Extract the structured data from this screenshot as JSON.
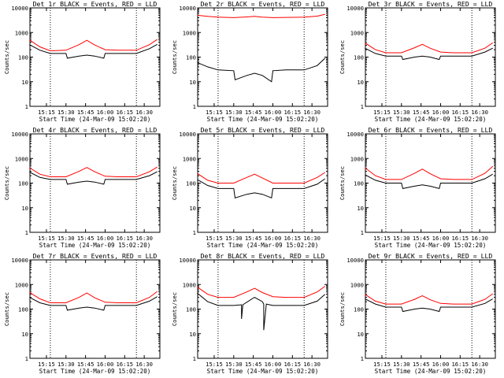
{
  "chart_data": [
    {
      "type": "line",
      "title": "Det 1r BLACK = Events, RED = LLD",
      "xlabel": "Start Time (24-Mar-09 15:02:20)",
      "ylabel": "Counts/sec",
      "yscale": "log",
      "ylim": [
        1,
        10000
      ],
      "xlim": [
        "15:02:20",
        "16:42:00"
      ],
      "x_ticks": [
        "15:15",
        "15:30",
        "15:45",
        "16:00",
        "16:15",
        "16:30"
      ],
      "y_ticks": [
        "1",
        "10",
        "100",
        "1000",
        "10000"
      ],
      "vlines": [
        "15:18",
        "16:24"
      ],
      "grid": false,
      "series": [
        {
          "color": "#ff0000",
          "x": [
            "15:02",
            "15:10",
            "15:18",
            "15:30",
            "15:40",
            "15:46",
            "15:52",
            "16:00",
            "16:10",
            "16:24",
            "16:34",
            "16:40"
          ],
          "values": [
            500,
            260,
            180,
            190,
            320,
            480,
            310,
            200,
            190,
            190,
            320,
            520
          ]
        },
        {
          "color": "#000000",
          "x": [
            "15:02",
            "15:10",
            "15:18",
            "15:30",
            "15:31",
            "15:40",
            "15:46",
            "15:52",
            "15:59",
            "16:00",
            "16:10",
            "16:24",
            "16:34",
            "16:40"
          ],
          "values": [
            320,
            190,
            140,
            140,
            90,
            110,
            120,
            110,
            90,
            140,
            140,
            140,
            220,
            330
          ]
        }
      ]
    },
    {
      "type": "line",
      "title": "Det 2r BLACK = Events, RED = LLD",
      "xlabel": "Start Time (24-Mar-09 15:02:20)",
      "ylabel": "Counts/sec",
      "yscale": "log",
      "ylim": [
        1,
        10000
      ],
      "xlim": [
        "15:02:20",
        "16:42:00"
      ],
      "x_ticks": [
        "15:15",
        "15:30",
        "15:45",
        "16:00",
        "16:15",
        "16:30"
      ],
      "y_ticks": [
        "1",
        "10",
        "100",
        "1000",
        "10000"
      ],
      "vlines": [
        "15:18",
        "16:24"
      ],
      "grid": false,
      "series": [
        {
          "color": "#ff0000",
          "x": [
            "15:02",
            "15:10",
            "15:18",
            "15:30",
            "15:40",
            "15:46",
            "15:52",
            "16:00",
            "16:10",
            "16:24",
            "16:34",
            "16:40"
          ],
          "values": [
            5000,
            4500,
            4200,
            4000,
            4300,
            4500,
            4200,
            4000,
            4100,
            4200,
            4600,
            5500
          ]
        },
        {
          "color": "#000000",
          "x": [
            "15:02",
            "15:10",
            "15:18",
            "15:30",
            "15:31",
            "15:40",
            "15:46",
            "15:52",
            "15:59",
            "16:00",
            "16:10",
            "16:24",
            "16:34",
            "16:40"
          ],
          "values": [
            60,
            40,
            30,
            28,
            12,
            18,
            22,
            18,
            10,
            28,
            30,
            30,
            45,
            90
          ]
        }
      ]
    },
    {
      "type": "line",
      "title": "Det 3r BLACK = Events, RED = LLD",
      "xlabel": "Start Time (24-Mar-09 15:02:20)",
      "ylabel": "Counts/sec",
      "yscale": "log",
      "ylim": [
        1,
        10000
      ],
      "xlim": [
        "15:02:20",
        "16:42:00"
      ],
      "x_ticks": [
        "15:15",
        "15:30",
        "15:45",
        "16:00",
        "16:15",
        "16:30"
      ],
      "y_ticks": [
        "1",
        "10",
        "100",
        "1000",
        "10000"
      ],
      "vlines": [
        "15:18",
        "16:24"
      ],
      "grid": false,
      "series": [
        {
          "color": "#ff0000",
          "x": [
            "15:02",
            "15:10",
            "15:18",
            "15:30",
            "15:40",
            "15:46",
            "15:52",
            "16:00",
            "16:10",
            "16:24",
            "16:34",
            "16:40"
          ],
          "values": [
            380,
            200,
            150,
            150,
            240,
            330,
            230,
            160,
            150,
            150,
            230,
            380
          ]
        },
        {
          "color": "#000000",
          "x": [
            "15:02",
            "15:10",
            "15:18",
            "15:30",
            "15:31",
            "15:40",
            "15:46",
            "15:52",
            "15:59",
            "16:00",
            "16:10",
            "16:24",
            "16:34",
            "16:40"
          ],
          "values": [
            230,
            140,
            110,
            110,
            80,
            100,
            110,
            100,
            80,
            110,
            110,
            110,
            160,
            230
          ]
        }
      ]
    },
    {
      "type": "line",
      "title": "Det 4r BLACK = Events, RED = LLD",
      "xlabel": "Start Time (24-Mar-09 15:02:20)",
      "ylabel": "Counts/sec",
      "yscale": "log",
      "ylim": [
        1,
        10000
      ],
      "xlim": [
        "15:02:20",
        "16:42:00"
      ],
      "x_ticks": [
        "15:15",
        "15:30",
        "15:45",
        "16:00",
        "16:15",
        "16:30"
      ],
      "y_ticks": [
        "1",
        "10",
        "100",
        "1000",
        "10000"
      ],
      "vlines": [
        "15:18",
        "16:24"
      ],
      "grid": false,
      "series": [
        {
          "color": "#ff0000",
          "x": [
            "15:02",
            "15:10",
            "15:18",
            "15:30",
            "15:40",
            "15:46",
            "15:52",
            "16:00",
            "16:10",
            "16:24",
            "16:34",
            "16:40"
          ],
          "values": [
            420,
            230,
            180,
            180,
            300,
            430,
            290,
            190,
            180,
            180,
            290,
            450
          ]
        },
        {
          "color": "#000000",
          "x": [
            "15:02",
            "15:10",
            "15:18",
            "15:30",
            "15:31",
            "15:40",
            "15:46",
            "15:52",
            "15:59",
            "16:00",
            "16:10",
            "16:24",
            "16:34",
            "16:40"
          ],
          "values": [
            280,
            170,
            140,
            140,
            90,
            110,
            120,
            110,
            90,
            140,
            140,
            140,
            200,
            290
          ]
        }
      ]
    },
    {
      "type": "line",
      "title": "Det 5r BLACK = Events, RED = LLD",
      "xlabel": "Start Time (24-Mar-09 15:02:20)",
      "ylabel": "Counts/sec",
      "yscale": "log",
      "ylim": [
        1,
        10000
      ],
      "xlim": [
        "15:02:20",
        "16:42:00"
      ],
      "x_ticks": [
        "15:15",
        "15:30",
        "15:45",
        "16:00",
        "16:15",
        "16:30"
      ],
      "y_ticks": [
        "1",
        "10",
        "100",
        "1000",
        "10000"
      ],
      "vlines": [
        "15:18",
        "16:24"
      ],
      "grid": false,
      "series": [
        {
          "color": "#ff0000",
          "x": [
            "15:02",
            "15:10",
            "15:18",
            "15:30",
            "15:40",
            "15:46",
            "15:52",
            "16:00",
            "16:10",
            "16:24",
            "16:34",
            "16:40"
          ],
          "values": [
            250,
            130,
            100,
            100,
            170,
            230,
            160,
            100,
            100,
            100,
            170,
            270
          ]
        },
        {
          "color": "#000000",
          "x": [
            "15:02",
            "15:10",
            "15:18",
            "15:30",
            "15:31",
            "15:40",
            "15:46",
            "15:52",
            "15:59",
            "16:00",
            "16:10",
            "16:24",
            "16:34",
            "16:40"
          ],
          "values": [
            140,
            80,
            60,
            60,
            25,
            35,
            40,
            35,
            25,
            60,
            60,
            60,
            90,
            150
          ]
        }
      ]
    },
    {
      "type": "line",
      "title": "Det 6r BLACK = Events, RED = LLD",
      "xlabel": "Start Time (24-Mar-09 15:02:20)",
      "ylabel": "Counts/sec",
      "yscale": "log",
      "ylim": [
        1,
        10000
      ],
      "xlim": [
        "15:02:20",
        "16:42:00"
      ],
      "x_ticks": [
        "15:15",
        "15:30",
        "15:45",
        "16:00",
        "16:15",
        "16:30"
      ],
      "y_ticks": [
        "1",
        "10",
        "100",
        "1000",
        "10000"
      ],
      "vlines": [
        "15:18",
        "16:24"
      ],
      "grid": false,
      "series": [
        {
          "color": "#ff0000",
          "x": [
            "15:02",
            "15:10",
            "15:18",
            "15:30",
            "15:40",
            "15:46",
            "15:52",
            "16:00",
            "16:10",
            "16:24",
            "16:34",
            "16:40"
          ],
          "values": [
            420,
            200,
            140,
            140,
            250,
            370,
            240,
            150,
            140,
            140,
            250,
            480
          ]
        },
        {
          "color": "#000000",
          "x": [
            "15:02",
            "15:10",
            "15:18",
            "15:30",
            "15:31",
            "15:40",
            "15:46",
            "15:52",
            "15:59",
            "16:00",
            "16:10",
            "16:24",
            "16:34",
            "16:40"
          ],
          "values": [
            220,
            130,
            100,
            100,
            60,
            75,
            85,
            75,
            60,
            100,
            100,
            100,
            150,
            230
          ]
        }
      ]
    },
    {
      "type": "line",
      "title": "Det 7r BLACK = Events, RED = LLD",
      "xlabel": "Start Time (24-Mar-09 15:02:20)",
      "ylabel": "Counts/sec",
      "yscale": "log",
      "ylim": [
        1,
        10000
      ],
      "xlim": [
        "15:02:20",
        "16:42:00"
      ],
      "x_ticks": [
        "15:15",
        "15:30",
        "15:45",
        "16:00",
        "16:15",
        "16:30"
      ],
      "y_ticks": [
        "1",
        "10",
        "100",
        "1000",
        "10000"
      ],
      "vlines": [
        "15:18",
        "16:24"
      ],
      "grid": false,
      "series": [
        {
          "color": "#ff0000",
          "x": [
            "15:02",
            "15:10",
            "15:18",
            "15:30",
            "15:40",
            "15:46",
            "15:52",
            "16:00",
            "16:10",
            "16:24",
            "16:34",
            "16:40"
          ],
          "values": [
            480,
            260,
            180,
            180,
            300,
            450,
            290,
            190,
            180,
            180,
            300,
            520
          ]
        },
        {
          "color": "#000000",
          "x": [
            "15:02",
            "15:10",
            "15:18",
            "15:30",
            "15:31",
            "15:40",
            "15:46",
            "15:52",
            "15:59",
            "16:00",
            "16:10",
            "16:24",
            "16:34",
            "16:40"
          ],
          "values": [
            300,
            180,
            140,
            140,
            90,
            110,
            120,
            110,
            90,
            140,
            140,
            140,
            210,
            320
          ]
        }
      ]
    },
    {
      "type": "line",
      "title": "Det 8r BLACK = Events, RED = LLD",
      "xlabel": "Start Time (24-Mar-09 15:02:20)",
      "ylabel": "Counts/sec",
      "yscale": "log",
      "ylim": [
        1,
        10000
      ],
      "xlim": [
        "15:02:20",
        "16:42:00"
      ],
      "x_ticks": [
        "15:15",
        "15:30",
        "15:45",
        "16:00",
        "16:15",
        "16:30"
      ],
      "y_ticks": [
        "1",
        "10",
        "100",
        "1000",
        "10000"
      ],
      "vlines": [
        "15:18",
        "16:24"
      ],
      "grid": false,
      "series": [
        {
          "color": "#ff0000",
          "x": [
            "15:02",
            "15:10",
            "15:18",
            "15:30",
            "15:40",
            "15:46",
            "15:52",
            "16:00",
            "16:10",
            "16:24",
            "16:34",
            "16:40"
          ],
          "values": [
            800,
            400,
            300,
            300,
            500,
            700,
            470,
            320,
            300,
            300,
            500,
            850
          ]
        },
        {
          "color": "#000000",
          "x": [
            "15:02",
            "15:10",
            "15:18",
            "15:30",
            "15:36",
            "15:36",
            "15:37",
            "15:44",
            "15:46",
            "15:52",
            "15:53",
            "15:53",
            "15:55",
            "16:00",
            "16:10",
            "16:24",
            "16:34",
            "16:40"
          ],
          "values": [
            450,
            200,
            140,
            140,
            150,
            40,
            150,
            260,
            300,
            200,
            160,
            14,
            160,
            140,
            140,
            140,
            210,
            400
          ]
        }
      ]
    },
    {
      "type": "line",
      "title": "Det 9r BLACK = Events, RED = LLD",
      "xlabel": "Start Time (24-Mar-09 15:02:20)",
      "ylabel": "Counts/sec",
      "yscale": "log",
      "ylim": [
        1,
        10000
      ],
      "xlim": [
        "15:02:20",
        "16:42:00"
      ],
      "x_ticks": [
        "15:15",
        "15:30",
        "15:45",
        "16:00",
        "16:15",
        "16:30"
      ],
      "y_ticks": [
        "1",
        "10",
        "100",
        "1000",
        "10000"
      ],
      "vlines": [
        "15:18",
        "16:24"
      ],
      "grid": false,
      "series": [
        {
          "color": "#ff0000",
          "x": [
            "15:02",
            "15:10",
            "15:18",
            "15:30",
            "15:40",
            "15:46",
            "15:52",
            "16:00",
            "16:10",
            "16:24",
            "16:34",
            "16:40"
          ],
          "values": [
            400,
            210,
            160,
            160,
            250,
            350,
            240,
            170,
            160,
            160,
            250,
            420
          ]
        },
        {
          "color": "#000000",
          "x": [
            "15:02",
            "15:10",
            "15:18",
            "15:30",
            "15:31",
            "15:40",
            "15:46",
            "15:52",
            "15:59",
            "16:00",
            "16:10",
            "16:24",
            "16:34",
            "16:40"
          ],
          "values": [
            260,
            160,
            120,
            120,
            80,
            100,
            110,
            100,
            80,
            120,
            120,
            120,
            170,
            260
          ]
        }
      ]
    }
  ]
}
